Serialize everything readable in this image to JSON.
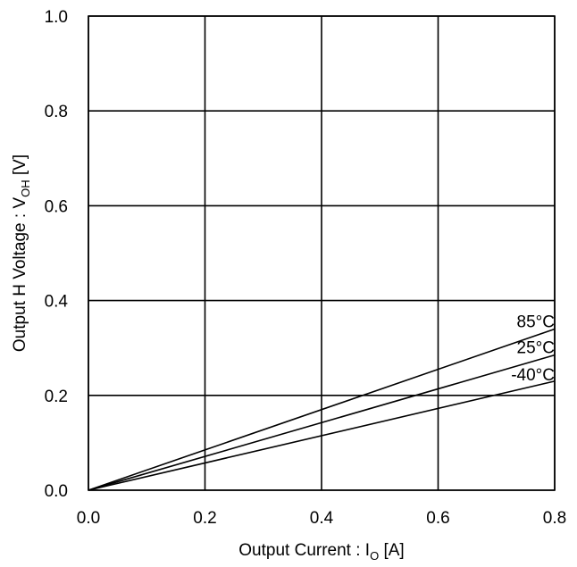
{
  "chart_data": {
    "type": "line",
    "xlabel": {
      "main": "Output Current : I",
      "sub": "O",
      "unit": " [A]"
    },
    "ylabel": {
      "main": "Output H Voltage : V",
      "sub": "OH",
      "unit": " [V]"
    },
    "xlim": [
      0.0,
      0.8
    ],
    "ylim": [
      0.0,
      1.0
    ],
    "x_ticks": [
      "0.0",
      "0.2",
      "0.4",
      "0.6",
      "0.8"
    ],
    "y_ticks": [
      "0.0",
      "0.2",
      "0.4",
      "0.6",
      "0.8",
      "1.0"
    ],
    "grid": true,
    "series": [
      {
        "name": "85°C",
        "x": [
          0.0,
          0.8
        ],
        "y": [
          0.0,
          0.34
        ]
      },
      {
        "name": "25°C",
        "x": [
          0.0,
          0.8
        ],
        "y": [
          0.0,
          0.285
        ]
      },
      {
        "name": "-40°C",
        "x": [
          0.0,
          0.8
        ],
        "y": [
          0.0,
          0.23
        ]
      }
    ],
    "colors": {
      "line": "#000000",
      "grid": "#000000",
      "background": "#ffffff"
    }
  }
}
